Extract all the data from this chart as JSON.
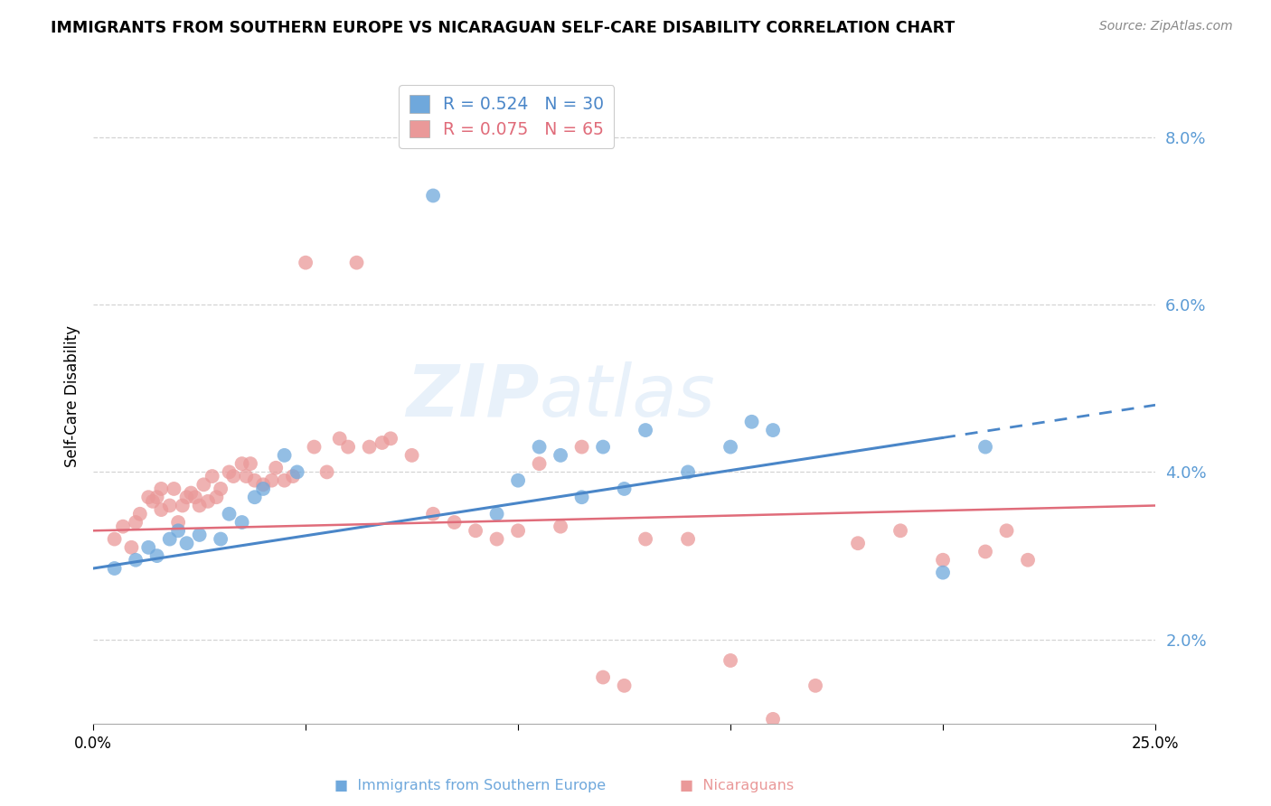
{
  "title": "IMMIGRANTS FROM SOUTHERN EUROPE VS NICARAGUAN SELF-CARE DISABILITY CORRELATION CHART",
  "source": "Source: ZipAtlas.com",
  "ylabel": "Self-Care Disability",
  "xlim": [
    0.0,
    0.25
  ],
  "ylim": [
    0.01,
    0.088
  ],
  "yticks": [
    0.02,
    0.04,
    0.06,
    0.08
  ],
  "ytick_labels": [
    "2.0%",
    "4.0%",
    "6.0%",
    "8.0%"
  ],
  "xtick_positions": [
    0.0,
    0.05,
    0.1,
    0.15,
    0.2,
    0.25
  ],
  "xtick_labels": [
    "0.0%",
    "",
    "",
    "",
    "",
    "25.0%"
  ],
  "blue_R": 0.524,
  "blue_N": 30,
  "pink_R": 0.075,
  "pink_N": 65,
  "blue_color": "#6fa8dc",
  "pink_color": "#ea9999",
  "blue_line_color": "#4a86c8",
  "pink_line_color": "#e06c7a",
  "grid_color": "#d4d4d4",
  "watermark": "ZIPatlas",
  "background_color": "#ffffff",
  "blue_scatter_x": [
    0.005,
    0.01,
    0.013,
    0.015,
    0.018,
    0.02,
    0.022,
    0.025,
    0.03,
    0.032,
    0.035,
    0.038,
    0.04,
    0.045,
    0.048,
    0.08,
    0.095,
    0.1,
    0.105,
    0.11,
    0.115,
    0.12,
    0.125,
    0.13,
    0.14,
    0.15,
    0.155,
    0.16,
    0.2,
    0.21
  ],
  "blue_scatter_y": [
    0.0285,
    0.0295,
    0.031,
    0.03,
    0.032,
    0.033,
    0.0315,
    0.0325,
    0.032,
    0.035,
    0.034,
    0.037,
    0.038,
    0.042,
    0.04,
    0.073,
    0.035,
    0.039,
    0.043,
    0.042,
    0.037,
    0.043,
    0.038,
    0.045,
    0.04,
    0.043,
    0.046,
    0.045,
    0.028,
    0.043
  ],
  "pink_scatter_x": [
    0.005,
    0.007,
    0.009,
    0.01,
    0.011,
    0.013,
    0.014,
    0.015,
    0.016,
    0.016,
    0.018,
    0.019,
    0.02,
    0.021,
    0.022,
    0.023,
    0.024,
    0.025,
    0.026,
    0.027,
    0.028,
    0.029,
    0.03,
    0.032,
    0.033,
    0.035,
    0.036,
    0.037,
    0.038,
    0.04,
    0.042,
    0.043,
    0.045,
    0.047,
    0.05,
    0.052,
    0.055,
    0.058,
    0.06,
    0.062,
    0.065,
    0.068,
    0.07,
    0.075,
    0.08,
    0.085,
    0.09,
    0.095,
    0.1,
    0.105,
    0.11,
    0.115,
    0.12,
    0.125,
    0.13,
    0.14,
    0.15,
    0.16,
    0.17,
    0.18,
    0.19,
    0.2,
    0.21,
    0.215,
    0.22
  ],
  "pink_scatter_y": [
    0.032,
    0.0335,
    0.031,
    0.034,
    0.035,
    0.037,
    0.0365,
    0.037,
    0.0355,
    0.038,
    0.036,
    0.038,
    0.034,
    0.036,
    0.037,
    0.0375,
    0.037,
    0.036,
    0.0385,
    0.0365,
    0.0395,
    0.037,
    0.038,
    0.04,
    0.0395,
    0.041,
    0.0395,
    0.041,
    0.039,
    0.0385,
    0.039,
    0.0405,
    0.039,
    0.0395,
    0.065,
    0.043,
    0.04,
    0.044,
    0.043,
    0.065,
    0.043,
    0.0435,
    0.044,
    0.042,
    0.035,
    0.034,
    0.033,
    0.032,
    0.033,
    0.041,
    0.0335,
    0.043,
    0.0155,
    0.0145,
    0.032,
    0.032,
    0.0175,
    0.0105,
    0.0145,
    0.0315,
    0.033,
    0.0295,
    0.0305,
    0.033,
    0.0295
  ],
  "blue_line_x_start": 0.0,
  "blue_line_x_solid_end": 0.2,
  "blue_line_x_dash_end": 0.25,
  "blue_line_y_start": 0.0285,
  "blue_line_y_end": 0.048,
  "pink_line_y_start": 0.033,
  "pink_line_y_end": 0.036
}
